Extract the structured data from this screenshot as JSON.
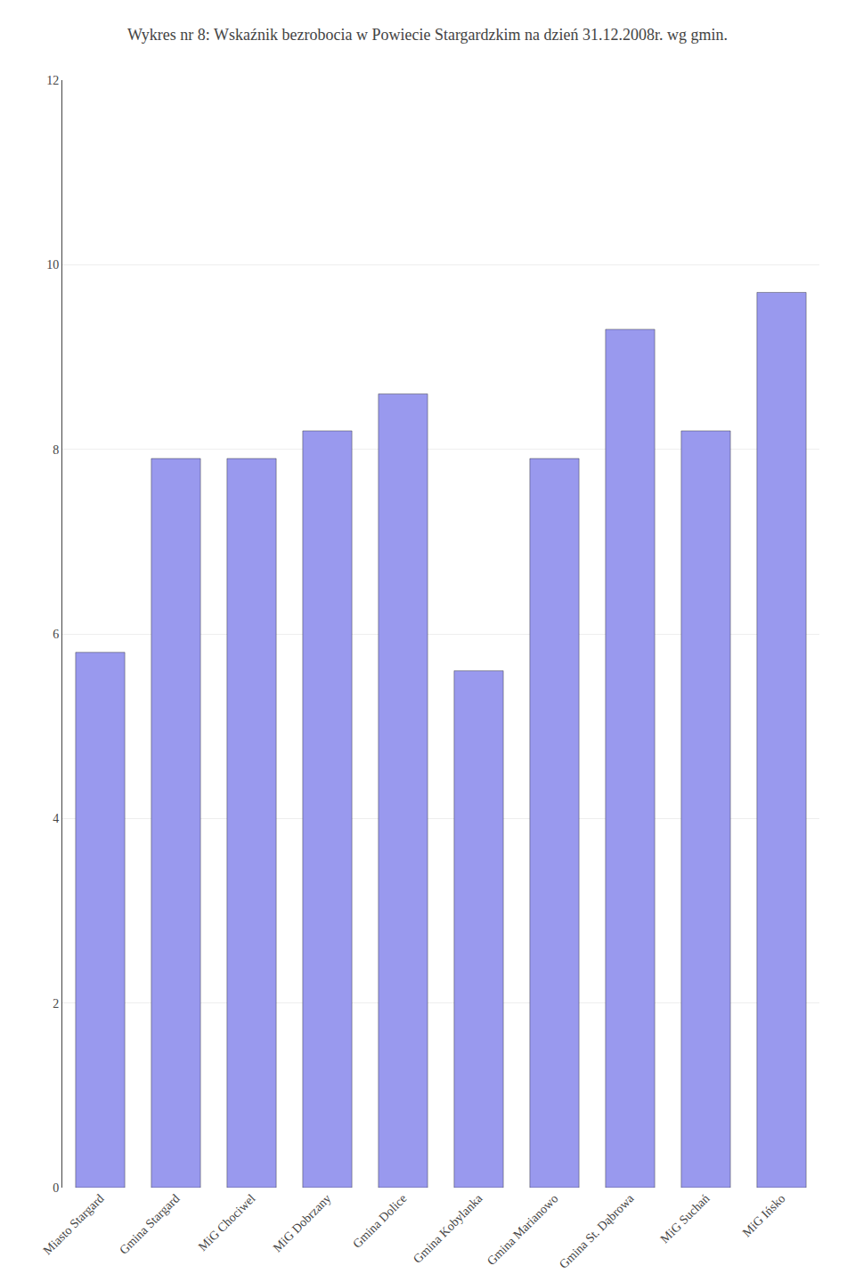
{
  "chart_data": {
    "type": "bar",
    "title": "Wykres nr 8: Wskaźnik bezrobocia w Powiecie Stargardzkim na dzień 31.12.2008r. wg gmin.",
    "categories": [
      "Miasto Stargard",
      "Gmina Stargard",
      "MiG Chociwel",
      "MiG Dobrzany",
      "Gmina Dolice",
      "Gmina Kobylanka",
      "Gmina Marianowo",
      "Gmina St. Dąbrowa",
      "MiG Suchań",
      "MiG Ińsko"
    ],
    "values": [
      5.8,
      7.9,
      7.9,
      8.2,
      8.6,
      5.6,
      7.9,
      9.3,
      8.2,
      9.7
    ],
    "color": "#9999EE",
    "ylim": [
      0,
      12
    ],
    "yticks": [
      0,
      2,
      4,
      6,
      8,
      10,
      12
    ],
    "grid": true
  }
}
